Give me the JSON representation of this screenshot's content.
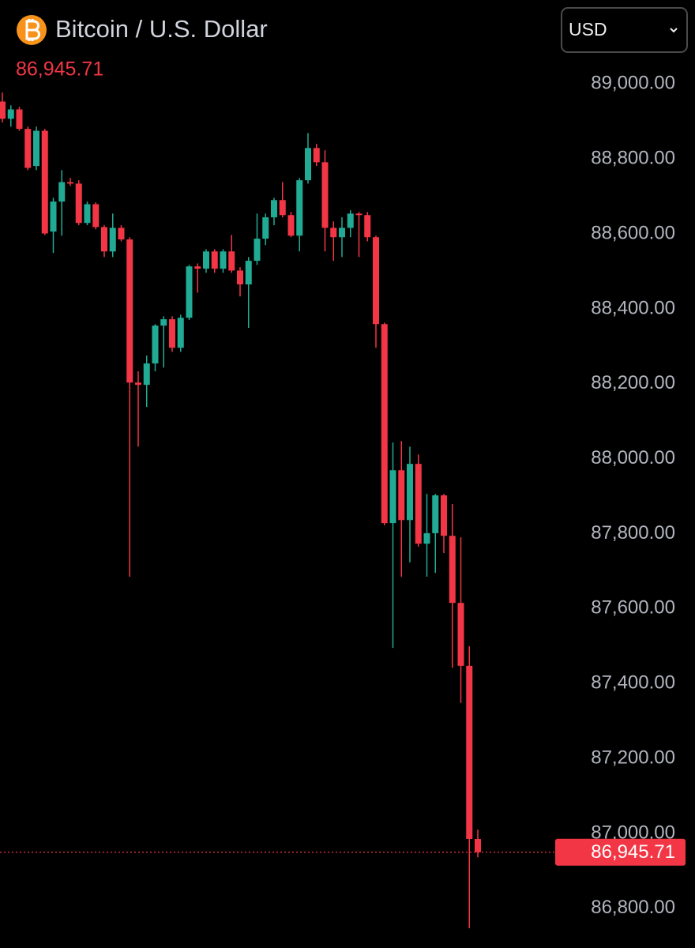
{
  "chart_data": {
    "type": "candlestick",
    "title": "Bitcoin / U.S. Dollar",
    "currency": "USD",
    "last_price": {
      "value": 86945.71,
      "label": "86,945.71"
    },
    "up_color": "#22ab94",
    "down_color": "#f23645",
    "ylim": [
      86690,
      89220
    ],
    "yticks": [
      {
        "value": 86800,
        "label": "86,800.00"
      },
      {
        "value": 87000,
        "label": "87,000.00"
      },
      {
        "value": 87200,
        "label": "87,200.00"
      },
      {
        "value": 87400,
        "label": "87,400.00"
      },
      {
        "value": 87600,
        "label": "87,600.00"
      },
      {
        "value": 87800,
        "label": "87,800.00"
      },
      {
        "value": 88000,
        "label": "88,000.00"
      },
      {
        "value": 88200,
        "label": "88,200.00"
      },
      {
        "value": 88400,
        "label": "88,400.00"
      },
      {
        "value": 88600,
        "label": "88,600.00"
      },
      {
        "value": 88800,
        "label": "88,800.00"
      },
      {
        "value": 89000,
        "label": "89,000.00"
      }
    ],
    "open": [
      88949,
      88903,
      88928,
      88876,
      88777,
      88871,
      88602,
      88682,
      88734,
      88730,
      88625,
      88675,
      88614,
      88549,
      88612,
      88581,
      88199,
      88193,
      88250,
      88351,
      88368,
      88292,
      88372,
      88509,
      88503,
      88549,
      88503,
      88549,
      88498,
      88461,
      88524,
      88583,
      88640,
      88686,
      88646,
      88591,
      88739,
      88825,
      88787,
      88612,
      88587,
      88612,
      88650,
      88646,
      88587,
      88355,
      87824,
      87965,
      87832,
      87982,
      87769,
      87797,
      87898,
      87790,
      87611,
      87443,
      86981
    ],
    "high": [
      88973,
      88939,
      88935,
      88882,
      88882,
      88876,
      88692,
      88766,
      88745,
      88739,
      88682,
      88680,
      88619,
      88650,
      88619,
      88587,
      88229,
      88271,
      88355,
      88376,
      88376,
      88380,
      88513,
      88517,
      88555,
      88555,
      88555,
      88593,
      88507,
      88534,
      88650,
      88650,
      88692,
      88734,
      88654,
      88745,
      88865,
      88836,
      88819,
      88629,
      88640,
      88659,
      88654,
      88654,
      88591,
      88359,
      88039,
      88043,
      88028,
      88007,
      87902,
      87902,
      87902,
      87875,
      87786,
      87495,
      87006
    ],
    "low": [
      88893,
      88882,
      88871,
      88766,
      88766,
      88593,
      88545,
      88591,
      88724,
      88619,
      88619,
      88608,
      88534,
      88534,
      88576,
      87681,
      88028,
      88134,
      88229,
      88239,
      88281,
      88281,
      88366,
      88439,
      88492,
      88492,
      88492,
      88492,
      88429,
      88345,
      88513,
      88566,
      88619,
      88640,
      88587,
      88549,
      88730,
      88777,
      88549,
      88524,
      88534,
      88587,
      88534,
      88576,
      88292,
      87818,
      87491,
      87681,
      87719,
      87761,
      87681,
      87691,
      87744,
      87438,
      87344,
      86743,
      86932
    ],
    "close": [
      88903,
      88928,
      88876,
      88772,
      88871,
      88597,
      88682,
      88734,
      88730,
      88625,
      88675,
      88614,
      88549,
      88612,
      88581,
      88199,
      88193,
      88250,
      88351,
      88368,
      88292,
      88372,
      88509,
      88503,
      88549,
      88503,
      88549,
      88498,
      88461,
      88524,
      88583,
      88640,
      88686,
      88646,
      88591,
      88739,
      88825,
      88787,
      88612,
      88587,
      88612,
      88650,
      88646,
      88587,
      88355,
      87824,
      87965,
      87832,
      87982,
      87769,
      87797,
      87898,
      87790,
      87611,
      87443,
      86981,
      86945.71
    ]
  }
}
